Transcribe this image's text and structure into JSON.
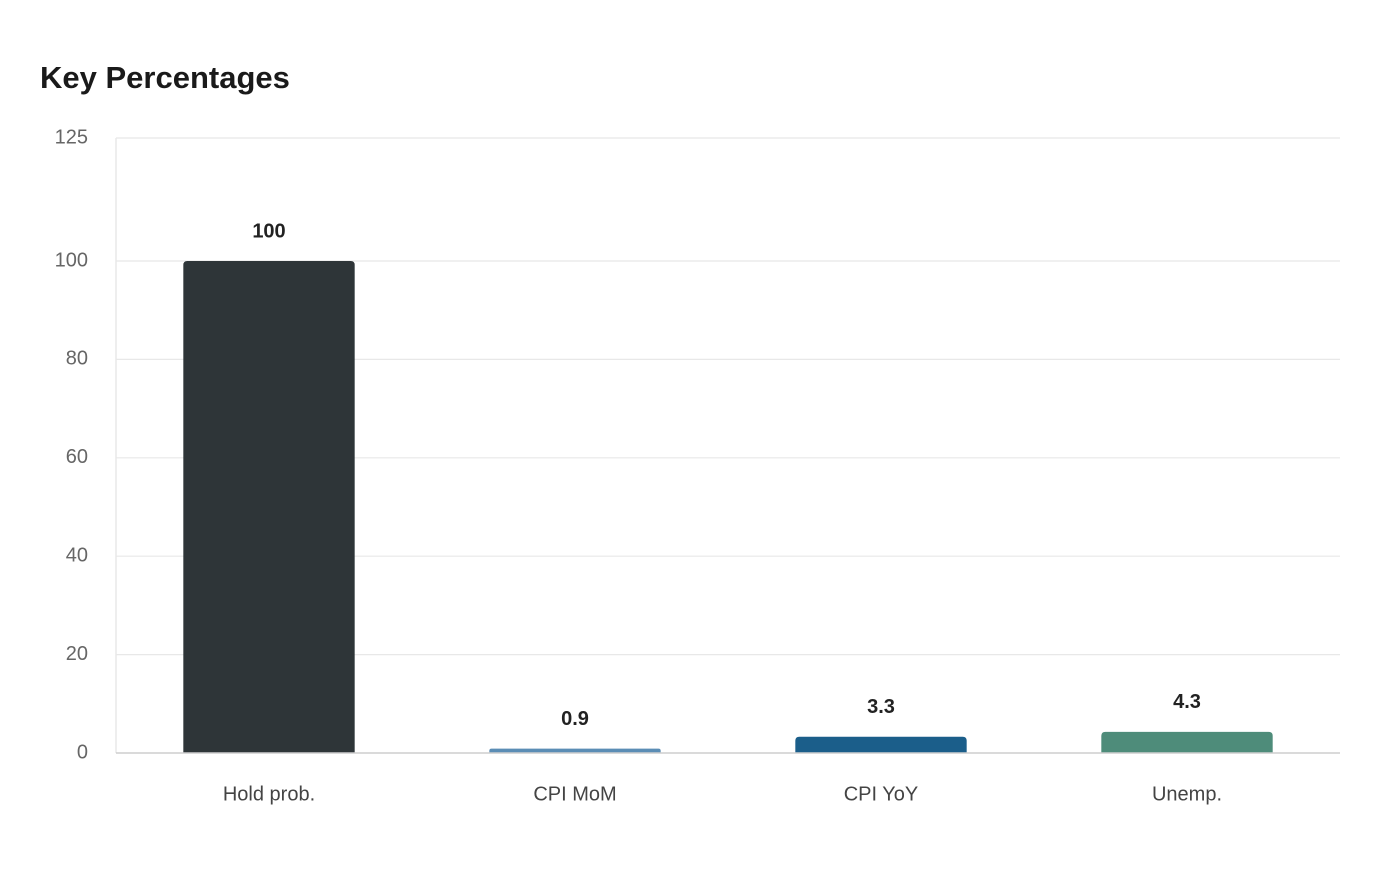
{
  "chart_data": {
    "type": "bar",
    "title": "Key Percentages",
    "categories": [
      "Hold prob.",
      "CPI MoM",
      "CPI YoY",
      "Unemp."
    ],
    "values": [
      100,
      0.9,
      3.3,
      4.3
    ],
    "colors": [
      "#2e3538",
      "#5b8db5",
      "#1b5e8a",
      "#4e8c7a"
    ],
    "ylim": [
      0,
      125
    ],
    "yticks": [
      0,
      20,
      40,
      60,
      80,
      100,
      125
    ],
    "grid": true
  }
}
